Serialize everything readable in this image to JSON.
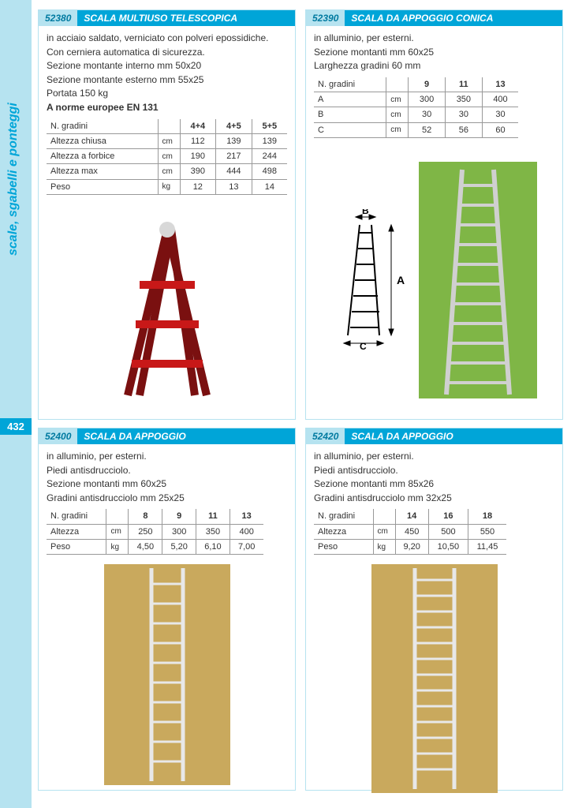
{
  "page": {
    "sidebar_label": "scale, sgabelli e ponteggi",
    "page_number": "432"
  },
  "accent_color": "#00a5d8",
  "sidebar_bg": "#b6e3f0",
  "products": {
    "p1": {
      "code": "52380",
      "title": "SCALA MULTIUSO TELESCOPICA",
      "desc": [
        "in acciaio saldato, verniciato con polveri epossidiche.",
        "Con cerniera automatica di sicurezza.",
        "Sezione montante interno mm 50x20",
        "Sezione montante esterno mm 55x25",
        "Portata 150 kg"
      ],
      "desc_bold": "A norme europee EN 131",
      "table": {
        "head": [
          "N. gradini",
          "",
          "4+4",
          "4+5",
          "5+5"
        ],
        "rows": [
          [
            "Altezza chiusa",
            "cm",
            "112",
            "139",
            "139"
          ],
          [
            "Altezza a forbice",
            "cm",
            "190",
            "217",
            "244"
          ],
          [
            "Altezza max",
            "cm",
            "390",
            "444",
            "498"
          ],
          [
            "Peso",
            "kg",
            "12",
            "13",
            "14"
          ]
        ]
      },
      "image": {
        "type": "a-frame",
        "color": "#c81818",
        "bg": "#ffffff"
      }
    },
    "p2": {
      "code": "52390",
      "title": "SCALA DA APPOGGIO CONICA",
      "desc": [
        "in alluminio, per esterni.",
        "Sezione montanti mm 60x25",
        "Larghezza gradini 60 mm"
      ],
      "table": {
        "head": [
          "N. gradini",
          "",
          "9",
          "11",
          "13"
        ],
        "rows": [
          [
            "A",
            "cm",
            "300",
            "350",
            "400"
          ],
          [
            "B",
            "cm",
            "30",
            "30",
            "30"
          ],
          [
            "C",
            "cm",
            "52",
            "56",
            "60"
          ]
        ]
      },
      "diagram_labels": {
        "a": "A",
        "b": "B",
        "c": "C"
      },
      "image": {
        "type": "straight",
        "color": "#c4c4c4",
        "bg": "#7fb646",
        "rungs": 11
      }
    },
    "p3": {
      "code": "52400",
      "title": "SCALA DA APPOGGIO",
      "desc": [
        "in alluminio, per esterni.",
        "Piedi antisdrucciolo.",
        "Sezione montanti mm 60x25",
        "Gradini antisdrucciolo mm 25x25"
      ],
      "table": {
        "head": [
          "N. gradini",
          "",
          "8",
          "9",
          "11",
          "13"
        ],
        "rows": [
          [
            "Altezza",
            "cm",
            "250",
            "300",
            "350",
            "400"
          ],
          [
            "Peso",
            "kg",
            "4,50",
            "5,20",
            "6,10",
            "7,00"
          ]
        ]
      },
      "image": {
        "type": "straight",
        "color": "#d8d8d8",
        "bg": "#c9a95d",
        "rungs": 10
      }
    },
    "p4": {
      "code": "52420",
      "title": "SCALA DA APPOGGIO",
      "desc": [
        "in alluminio, per esterni.",
        "Piedi antisdrucciolo.",
        "Sezione montanti mm 85x26",
        "Gradini antisdrucciolo mm 32x25"
      ],
      "table": {
        "head": [
          "N. gradini",
          "",
          "14",
          "16",
          "18"
        ],
        "rows": [
          [
            "Altezza",
            "cm",
            "450",
            "500",
            "550"
          ],
          [
            "Peso",
            "kg",
            "9,20",
            "10,50",
            "11,45"
          ]
        ]
      },
      "image": {
        "type": "straight",
        "color": "#d8d8d8",
        "bg": "#c9a95d",
        "rungs": 13
      }
    }
  }
}
